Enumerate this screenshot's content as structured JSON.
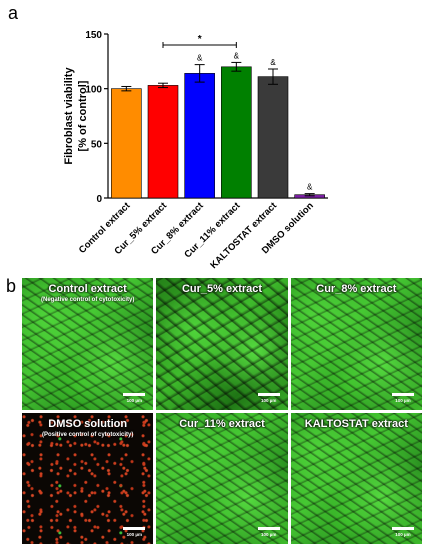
{
  "panel_a_label": "a",
  "panel_b_label": "b",
  "colors": {
    "control": "#ff8c00",
    "cur5": "#ff0000",
    "cur8": "#0000ff",
    "cur11": "#008000",
    "kaltostat": "#3a3a3a",
    "dmso": "#7b1fa2"
  },
  "chart_data": {
    "type": "bar",
    "categories": [
      "Control extract",
      "Cur_5% extract",
      "Cur_8% extract",
      "Cur_11% extract",
      "KALTOSTAT extract",
      "DMSO solution"
    ],
    "values": [
      100,
      103,
      114,
      120,
      111,
      3
    ],
    "errors": [
      2,
      2,
      8,
      4,
      7,
      1
    ],
    "ylabel_line1": "Fibroblast viability",
    "ylabel_line2": "[% of control]",
    "ylim": [
      0,
      150
    ],
    "yticks": [
      "0",
      "50",
      "100",
      "150"
    ],
    "annotations": {
      "ampersand": "&",
      "ampersand_on": [
        "Cur_8% extract",
        "Cur_11% extract",
        "KALTOSTAT extract",
        "DMSO solution"
      ],
      "significance": "*",
      "significance_between": [
        "Cur_5% extract",
        "Cur_11% extract"
      ]
    },
    "grid": false,
    "legend": "none"
  },
  "micrographs": [
    {
      "title": "Control extract",
      "subtitle": "(Negative control of cytotoxicity)",
      "scale": "100 µm",
      "style": "green"
    },
    {
      "title": "Cur_5% extract",
      "subtitle": "",
      "scale": "100 µm",
      "style": "green sparse"
    },
    {
      "title": "Cur_8% extract",
      "subtitle": "",
      "scale": "100 µm",
      "style": "green"
    },
    {
      "title": "DMSO solution",
      "subtitle": "(Positive control of cytotoxicity)",
      "scale": "100 µm",
      "style": "dmso"
    },
    {
      "title": "Cur_11% extract",
      "subtitle": "",
      "scale": "100 µm",
      "style": "green"
    },
    {
      "title": "KALTOSTAT extract",
      "subtitle": "",
      "scale": "100 µm",
      "style": "green"
    }
  ]
}
